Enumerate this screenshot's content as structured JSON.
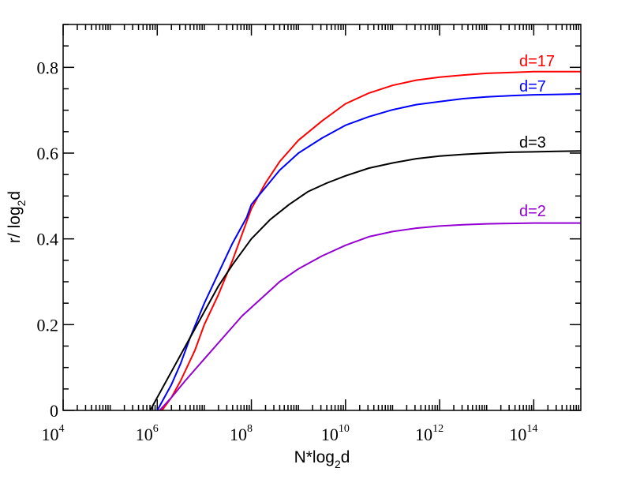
{
  "chart_data": {
    "type": "line",
    "title": "",
    "x_scale": "log10",
    "xlim_exponents": [
      4,
      15
    ],
    "ylim": [
      0,
      0.9
    ],
    "xlabel": {
      "base": "N*log",
      "sub": "2",
      "rest": "d"
    },
    "ylabel": {
      "base": "r/ log",
      "sub": "2",
      "rest": "d"
    },
    "x_ticks": [
      {
        "base": "10",
        "exp": "4"
      },
      {
        "base": "10",
        "exp": "6"
      },
      {
        "base": "10",
        "exp": "8"
      },
      {
        "base": "10",
        "exp": "10"
      },
      {
        "base": "10",
        "exp": "12"
      },
      {
        "base": "10",
        "exp": "14"
      }
    ],
    "x_tick_exponents": [
      4,
      6,
      8,
      10,
      12,
      14
    ],
    "y_ticks": [
      "0",
      "0.2",
      "0.4",
      "0.6",
      "0.8"
    ],
    "y_tick_values": [
      0,
      0.2,
      0.4,
      0.6,
      0.8
    ],
    "grid": false,
    "series": [
      {
        "name": "d=17",
        "color": "#ff0000",
        "log10_x": [
          6.1,
          6.3,
          6.5,
          6.8,
          7.0,
          7.3,
          7.6,
          7.8,
          8.0,
          8.3,
          8.6,
          9.0,
          9.5,
          10.0,
          10.5,
          11.0,
          11.5,
          12.0,
          12.5,
          13.0,
          13.5,
          14.0,
          14.5,
          15.0
        ],
        "values": [
          0.0,
          0.03,
          0.07,
          0.14,
          0.2,
          0.27,
          0.35,
          0.41,
          0.47,
          0.53,
          0.58,
          0.63,
          0.675,
          0.715,
          0.74,
          0.758,
          0.77,
          0.777,
          0.782,
          0.786,
          0.788,
          0.79,
          0.79,
          0.79
        ]
      },
      {
        "name": "d=7",
        "color": "#0000ff",
        "log10_x": [
          6.0,
          6.3,
          6.5,
          6.7,
          7.0,
          7.3,
          7.6,
          7.9,
          8.0,
          8.3,
          8.6,
          9.0,
          9.5,
          10.0,
          10.5,
          11.0,
          11.5,
          12.0,
          12.5,
          13.0,
          13.5,
          14.0,
          14.5,
          15.0
        ],
        "values": [
          0.0,
          0.06,
          0.11,
          0.17,
          0.25,
          0.32,
          0.39,
          0.45,
          0.48,
          0.52,
          0.56,
          0.6,
          0.635,
          0.665,
          0.685,
          0.701,
          0.713,
          0.72,
          0.727,
          0.731,
          0.734,
          0.736,
          0.737,
          0.738
        ]
      },
      {
        "name": "d=3",
        "color": "#000000",
        "log10_x": [
          5.85,
          6.1,
          6.4,
          6.7,
          7.0,
          7.3,
          7.6,
          8.0,
          8.4,
          8.8,
          9.2,
          9.6,
          10.0,
          10.5,
          11.0,
          11.5,
          12.0,
          12.5,
          13.0,
          13.5,
          14.0,
          14.5,
          15.0
        ],
        "values": [
          0.0,
          0.05,
          0.11,
          0.17,
          0.23,
          0.29,
          0.34,
          0.4,
          0.445,
          0.48,
          0.51,
          0.53,
          0.547,
          0.565,
          0.577,
          0.587,
          0.593,
          0.597,
          0.6,
          0.602,
          0.603,
          0.604,
          0.605
        ]
      },
      {
        "name": "d=2",
        "color": "#9400d3",
        "log10_x": [
          6.05,
          6.3,
          6.6,
          7.0,
          7.4,
          7.8,
          8.2,
          8.6,
          9.0,
          9.5,
          10.0,
          10.5,
          11.0,
          11.5,
          12.0,
          12.5,
          13.0,
          13.5,
          14.0,
          14.5,
          15.0
        ],
        "values": [
          0.0,
          0.03,
          0.07,
          0.12,
          0.17,
          0.22,
          0.26,
          0.3,
          0.33,
          0.36,
          0.385,
          0.405,
          0.417,
          0.425,
          0.43,
          0.433,
          0.435,
          0.436,
          0.437,
          0.437,
          0.437
        ]
      }
    ]
  }
}
